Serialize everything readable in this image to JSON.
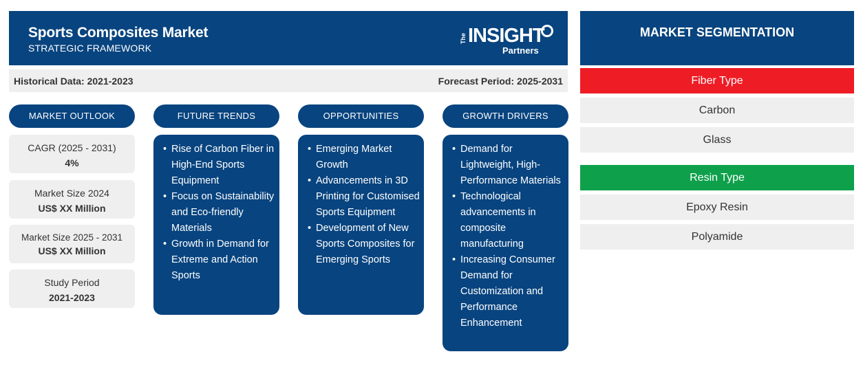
{
  "header": {
    "title": "Sports Composites Market",
    "subtitle": "STRATEGIC FRAMEWORK",
    "logo": {
      "the": "The",
      "insight": "INSIGHT",
      "partners": "Partners"
    }
  },
  "period": {
    "historical": "Historical Data: 2021-2023",
    "forecast": "Forecast Period: 2025-2031"
  },
  "columns": {
    "outlook": "MARKET OUTLOOK",
    "trends": "FUTURE TRENDS",
    "opportunities": "OPPORTUNITIES",
    "drivers": "GROWTH DRIVERS"
  },
  "outlook": [
    {
      "label": "CAGR (2025 - 2031)",
      "value": "4%"
    },
    {
      "label": "Market Size 2024",
      "value": "US$ XX Million"
    },
    {
      "label": "Market Size 2025 - 2031",
      "value": "US$ XX Million"
    },
    {
      "label": "Study Period",
      "value": "2021-2023"
    }
  ],
  "trends": [
    "Rise of Carbon Fiber in High-End Sports Equipment",
    "Focus on Sustainability and Eco-friendly Materials",
    "Growth in Demand for Extreme and Action Sports"
  ],
  "opportunities": [
    "Emerging Market Growth",
    "Advancements in 3D Printing for Customised Sports Equipment",
    "Development of New Sports Composites for Emerging Sports"
  ],
  "drivers": [
    "Demand for Lightweight, High-Performance Materials",
    "Technological advancements in composite manufacturing",
    "Increasing Consumer Demand for Customization and Performance Enhancement"
  ],
  "segmentation": {
    "title": "MARKET SEGMENTATION",
    "fiber_type": {
      "label": "Fiber Type",
      "color": "#ee1c25",
      "items": [
        "Carbon",
        "Glass"
      ]
    },
    "resin_type": {
      "label": "Resin Type",
      "color": "#0ea04b",
      "items": [
        "Epoxy Resin",
        "Polyamide"
      ]
    }
  },
  "colors": {
    "primary": "#08447f",
    "panel_grey": "#efefef"
  }
}
